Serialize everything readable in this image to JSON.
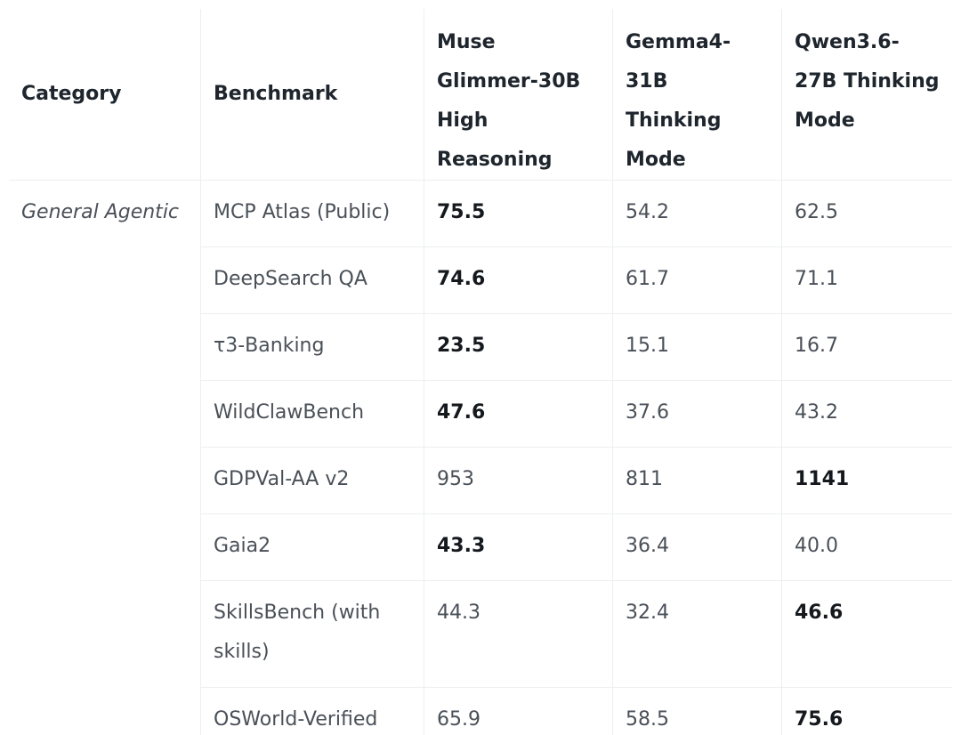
{
  "table": {
    "headers": {
      "category": "Category",
      "benchmark": "Benchmark",
      "model_1": "Muse Glimmer-30B High Reasoning",
      "model_2": "Gemma4-31B Thinking Mode",
      "model_3": "Qwen3.6-27B Thinking Mode"
    },
    "rows": [
      {
        "category": "General Agentic",
        "benchmark": "MCP Atlas (Public)",
        "v1": "75.5",
        "v2": "54.2",
        "v3": "62.5",
        "best": 1
      },
      {
        "category": "",
        "benchmark": "DeepSearch QA",
        "v1": "74.6",
        "v2": "61.7",
        "v3": "71.1",
        "best": 1
      },
      {
        "category": "",
        "benchmark": "τ3-Banking",
        "v1": "23.5",
        "v2": "15.1",
        "v3": "16.7",
        "best": 1
      },
      {
        "category": "",
        "benchmark": "WildClawBench",
        "v1": "47.6",
        "v2": "37.6",
        "v3": "43.2",
        "best": 1
      },
      {
        "category": "",
        "benchmark": "GDPVal-AA v2",
        "v1": "953",
        "v2": "811",
        "v3": "1141",
        "best": 3
      },
      {
        "category": "",
        "benchmark": "Gaia2",
        "v1": "43.3",
        "v2": "36.4",
        "v3": "40.0",
        "best": 1
      },
      {
        "category": "",
        "benchmark": "SkillsBench (with skills)",
        "v1": "44.3",
        "v2": "32.4",
        "v3": "46.6",
        "best": 3
      },
      {
        "category": "",
        "benchmark": "OSWorld-Verified",
        "v1": "65.9",
        "v2": "58.5",
        "v3": "75.6",
        "best": 3
      }
    ]
  }
}
